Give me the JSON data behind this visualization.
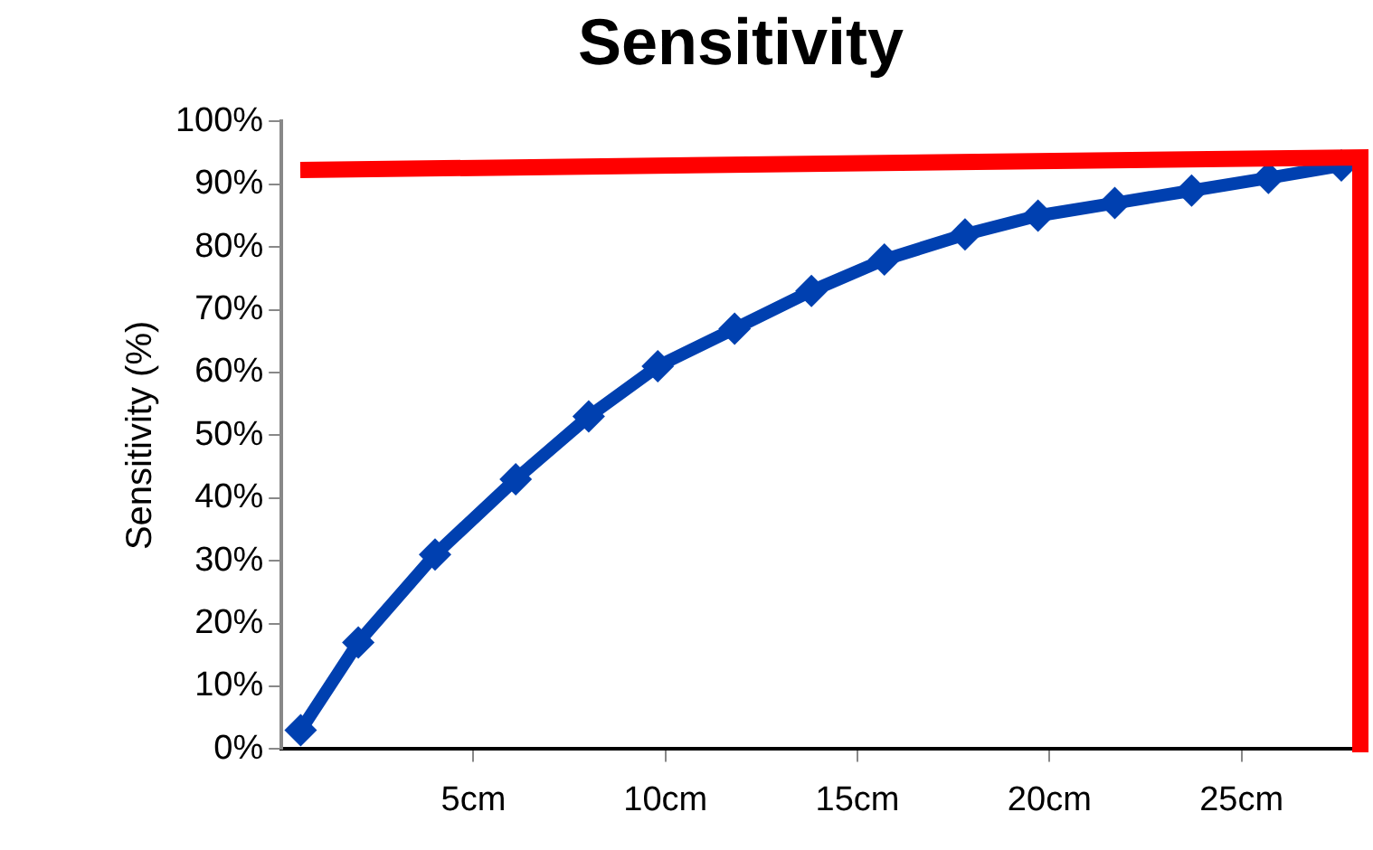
{
  "chart_data": {
    "type": "line",
    "title": "Sensitivity",
    "ylabel": "Sensitivity (%)",
    "x": [
      0.5,
      2,
      4,
      6.1,
      8,
      9.8,
      11.8,
      13.8,
      15.7,
      17.8,
      19.7,
      21.7,
      23.7,
      25.7,
      27.6
    ],
    "series": [
      {
        "color": "#0040b0",
        "values": [
          3,
          17,
          31,
          43,
          53,
          61,
          67,
          73,
          78,
          82,
          85,
          87,
          89,
          91,
          93
        ]
      }
    ],
    "xlim": [
      0,
      28
    ],
    "xticks": [
      {
        "value": 5,
        "label": "5cm"
      },
      {
        "value": 10,
        "label": "10cm"
      },
      {
        "value": 15,
        "label": "15cm"
      },
      {
        "value": 20,
        "label": "20cm"
      },
      {
        "value": 25,
        "label": "25cm"
      }
    ],
    "ylim": [
      0,
      100
    ],
    "yticks": [
      {
        "value": 0,
        "label": "0%"
      },
      {
        "value": 10,
        "label": "10%"
      },
      {
        "value": 20,
        "label": "20%"
      },
      {
        "value": 30,
        "label": "30%"
      },
      {
        "value": 40,
        "label": "40%"
      },
      {
        "value": 50,
        "label": "50%"
      },
      {
        "value": 60,
        "label": "60%"
      },
      {
        "value": 70,
        "label": "70%"
      },
      {
        "value": 80,
        "label": "80%"
      },
      {
        "value": 90,
        "label": "90%"
      },
      {
        "value": 100,
        "label": "100%"
      }
    ],
    "grid": false,
    "legend": false,
    "marker": "diamond",
    "line_style": "solid"
  }
}
